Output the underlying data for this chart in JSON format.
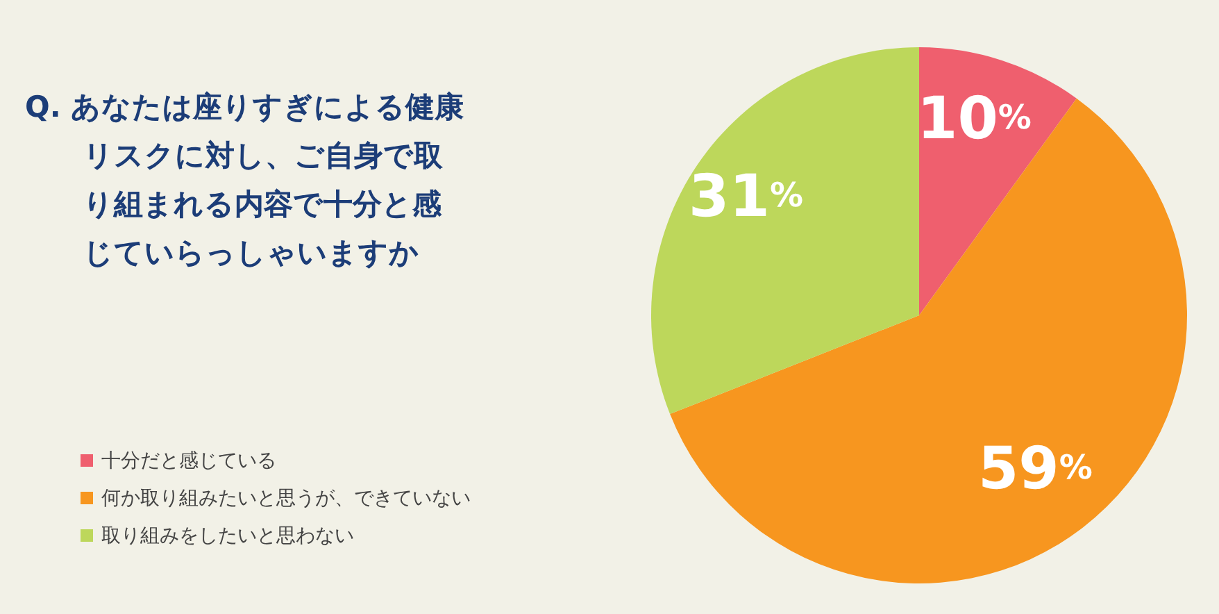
{
  "chart_data": {
    "type": "pie",
    "title": "Q. あなたは座りすぎによる健康リスクに対し、ご自身で取り組まれる内容で十分と感じていらっしゃいますか",
    "categories": [
      "十分だと感じている",
      "何か取り組みたいと思うが、できていない",
      "取り組みをしたいと思わない"
    ],
    "values": [
      10,
      59,
      31
    ],
    "value_labels": [
      "10%",
      "59%",
      "31%"
    ],
    "colors": [
      "#ef5f6e",
      "#f7961f",
      "#bdd75b"
    ],
    "legend": "left"
  }
}
